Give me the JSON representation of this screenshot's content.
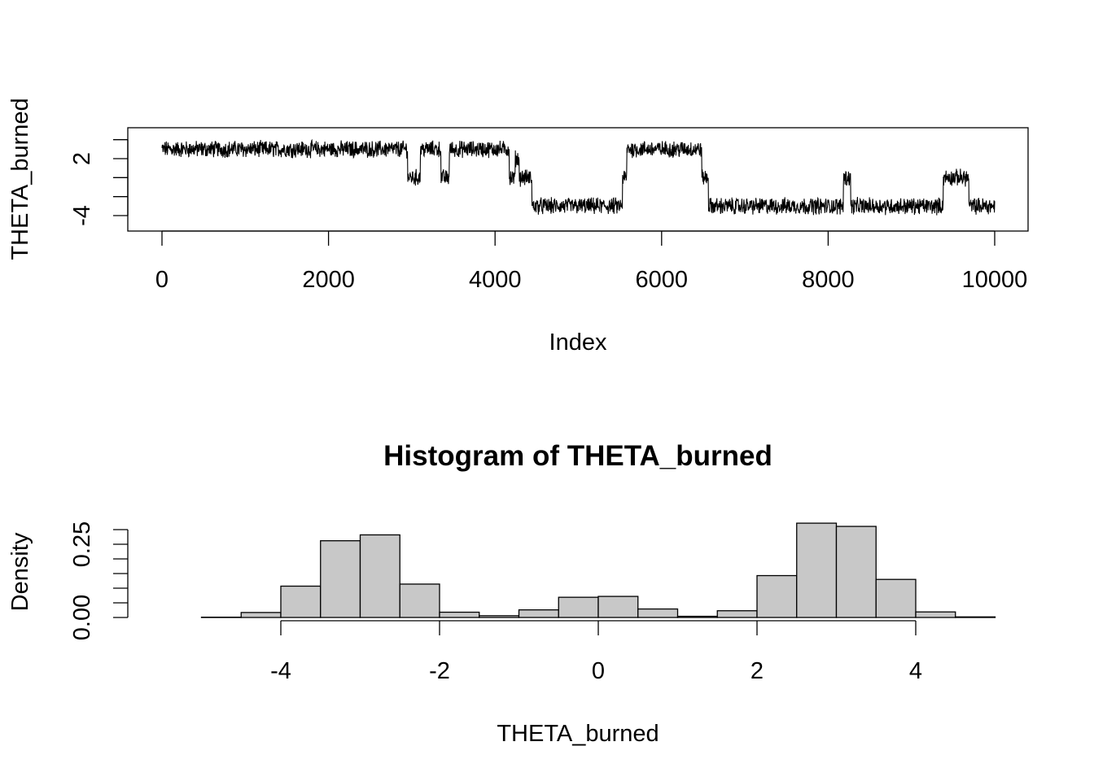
{
  "chart_data": [
    {
      "type": "line",
      "title": "",
      "xlabel": "Index",
      "ylabel": "THETA_burned",
      "xlim": [
        0,
        10000
      ],
      "ylim": [
        -5.7,
        5.2
      ],
      "x_ticks": [
        0,
        2000,
        4000,
        6000,
        8000,
        10000
      ],
      "x_tick_labels": [
        "0",
        "2000",
        "4000",
        "6000",
        "8000",
        "10000"
      ],
      "y_ticks": [
        -4,
        -2,
        0,
        2,
        4
      ],
      "y_tick_labels": [
        "-4",
        "",
        "",
        "2",
        ""
      ],
      "line_color": "#000000",
      "series": [
        {
          "values_description_segments": [
            {
              "from": 0,
              "to": 2950,
              "level": 3.0
            },
            {
              "from": 2950,
              "to": 3100,
              "level": 0.0
            },
            {
              "from": 3100,
              "to": 3350,
              "level": 3.0
            },
            {
              "from": 3350,
              "to": 3450,
              "level": 0.0
            },
            {
              "from": 3450,
              "to": 4170,
              "level": 3.0
            },
            {
              "from": 4170,
              "to": 4240,
              "level": 0.0
            },
            {
              "from": 4240,
              "to": 4290,
              "level": 2.0
            },
            {
              "from": 4290,
              "to": 4440,
              "level": 0.0
            },
            {
              "from": 4440,
              "to": 5530,
              "level": -3.0
            },
            {
              "from": 5530,
              "to": 5580,
              "level": 0.0
            },
            {
              "from": 5580,
              "to": 6480,
              "level": 3.0
            },
            {
              "from": 6480,
              "to": 6560,
              "level": 0.0
            },
            {
              "from": 6560,
              "to": 8180,
              "level": -3.0
            },
            {
              "from": 8180,
              "to": 8270,
              "level": 0.0
            },
            {
              "from": 8270,
              "to": 9380,
              "level": -3.0
            },
            {
              "from": 9380,
              "to": 9690,
              "level": 0.0
            },
            {
              "from": 9690,
              "to": 10000,
              "level": -3.0
            }
          ]
        }
      ]
    },
    {
      "type": "bar",
      "title": "Histogram of THETA_burned",
      "xlabel": "THETA_burned",
      "ylabel": "Density",
      "xlim": [
        -5.5,
        5.0
      ],
      "ylim": [
        0,
        0.36
      ],
      "x_ticks": [
        -4,
        -2,
        0,
        2,
        4
      ],
      "x_tick_labels": [
        "-4",
        "-2",
        "0",
        "2",
        "4"
      ],
      "y_ticks": [
        0.0,
        0.05,
        0.1,
        0.15,
        0.2,
        0.25,
        0.3
      ],
      "y_tick_labels": [
        "0.00",
        "",
        "",
        "",
        "",
        "0.25",
        ""
      ],
      "bar_color": "#c8c8c8",
      "bin_edges": [
        -5.5,
        -5.0,
        -4.5,
        -4.0,
        -3.5,
        -3.0,
        -2.5,
        -2.0,
        -1.5,
        -1.0,
        -0.5,
        0.0,
        0.5,
        1.0,
        1.5,
        2.0,
        2.5,
        3.0,
        3.5,
        4.0,
        4.5,
        5.0
      ],
      "values": [
        0.0,
        0.001,
        0.017,
        0.107,
        0.262,
        0.282,
        0.114,
        0.018,
        0.006,
        0.026,
        0.069,
        0.072,
        0.029,
        0.004,
        0.023,
        0.143,
        0.322,
        0.311,
        0.13,
        0.019,
        0.002
      ]
    }
  ]
}
